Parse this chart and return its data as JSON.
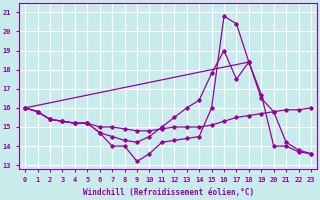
{
  "xlabel": "Windchill (Refroidissement éolien,°C)",
  "bg_color": "#c8ecec",
  "grid_color": "#ffffff",
  "line_color": "#990099",
  "xlim": [
    -0.5,
    23.5
  ],
  "ylim": [
    12.8,
    21.5
  ],
  "xticks": [
    0,
    1,
    2,
    3,
    4,
    5,
    6,
    7,
    8,
    9,
    10,
    11,
    12,
    13,
    14,
    15,
    16,
    17,
    18,
    19,
    20,
    21,
    22,
    23
  ],
  "yticks": [
    13,
    14,
    15,
    16,
    17,
    18,
    19,
    20,
    21
  ],
  "line1_x": [
    0,
    1,
    2,
    3,
    4,
    5,
    6,
    7,
    8,
    9,
    10,
    11,
    12,
    13,
    14,
    15,
    16,
    17,
    18,
    19,
    20,
    21,
    22,
    23
  ],
  "line1_y": [
    16.0,
    15.8,
    15.4,
    15.3,
    15.2,
    15.2,
    15.0,
    15.0,
    14.9,
    14.8,
    14.8,
    14.9,
    15.0,
    15.0,
    15.0,
    15.1,
    15.3,
    15.5,
    15.6,
    15.7,
    15.8,
    15.9,
    15.9,
    16.0
  ],
  "line2_x": [
    0,
    1,
    2,
    3,
    4,
    5,
    6,
    7,
    8,
    9,
    10,
    11,
    12,
    13,
    14,
    15,
    16,
    17,
    18,
    19,
    20,
    21,
    22,
    23
  ],
  "line2_y": [
    16.0,
    15.8,
    15.4,
    15.3,
    15.2,
    15.2,
    14.7,
    14.0,
    14.0,
    13.2,
    13.6,
    14.2,
    14.3,
    14.4,
    14.5,
    16.0,
    20.8,
    20.4,
    18.4,
    16.7,
    14.0,
    14.0,
    13.7,
    13.6
  ],
  "line3_x": [
    0,
    1,
    2,
    3,
    4,
    5,
    6,
    7,
    8,
    9,
    10,
    11,
    12,
    13,
    14,
    15,
    16,
    17,
    18,
    19,
    20,
    21,
    22,
    23
  ],
  "line3_y": [
    16.0,
    15.8,
    15.4,
    15.3,
    15.2,
    15.2,
    14.7,
    14.5,
    14.3,
    14.2,
    14.5,
    15.0,
    15.5,
    16.0,
    16.4,
    17.8,
    19.0,
    17.5,
    18.4,
    16.5,
    15.8,
    14.2,
    13.8,
    13.6
  ],
  "line4_x": [
    0,
    18
  ],
  "line4_y": [
    16.0,
    18.4
  ]
}
